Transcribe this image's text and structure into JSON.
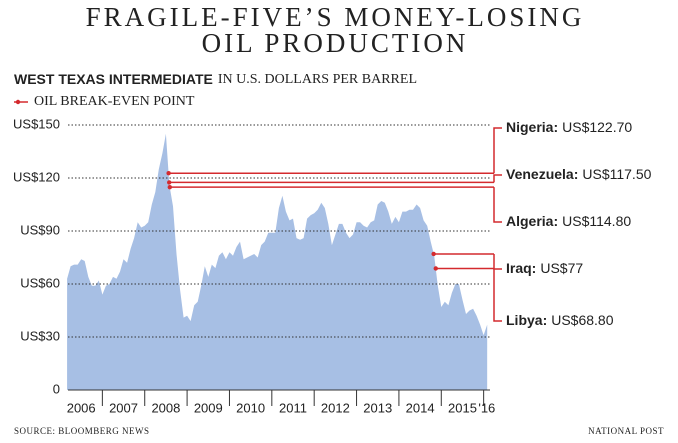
{
  "chart_data": {
    "type": "area",
    "title": [
      "FRAGILE-FIVE’S MONEY-LOSING",
      "OIL PRODUCTION"
    ],
    "subtitle": "IN U.S. DOLLARS PER BARREL",
    "legend_label": "OIL BREAK-EVEN POINT",
    "source": "SOURCE: BLOOMBERG NEWS",
    "credit": "NATIONAL POST",
    "break_even_color": "#d42a2e",
    "grid": true,
    "xlim": [
      2006,
      2016.15
    ],
    "ylim": [
      0,
      150
    ],
    "xticks": [
      2006,
      2007,
      2008,
      2009,
      2010,
      2011,
      2012,
      2013,
      2014,
      2015,
      {
        "value": 2016,
        "label": "'16"
      }
    ],
    "yticks": [
      0,
      {
        "value": 30,
        "label": "US$30"
      },
      {
        "value": 60,
        "label": "US$60"
      },
      {
        "value": 90,
        "label": "US$90"
      },
      {
        "value": 120,
        "label": "US$120"
      },
      {
        "value": 150,
        "label": "US$150"
      }
    ],
    "x": [
      2006.167,
      2006.25,
      2006.333,
      2006.417,
      2006.5,
      2006.583,
      2006.667,
      2006.75,
      2006.833,
      2006.917,
      2007,
      2007.083,
      2007.167,
      2007.25,
      2007.333,
      2007.417,
      2007.5,
      2007.583,
      2007.667,
      2007.75,
      2007.833,
      2007.917,
      2008,
      2008.083,
      2008.167,
      2008.25,
      2008.333,
      2008.417,
      2008.5,
      2008.583,
      2008.667,
      2008.75,
      2008.833,
      2008.917,
      2009,
      2009.083,
      2009.167,
      2009.25,
      2009.333,
      2009.417,
      2009.5,
      2009.583,
      2009.667,
      2009.75,
      2009.833,
      2009.917,
      2010,
      2010.083,
      2010.167,
      2010.25,
      2010.333,
      2010.417,
      2010.5,
      2010.583,
      2010.667,
      2010.75,
      2010.833,
      2010.917,
      2011,
      2011.083,
      2011.167,
      2011.25,
      2011.333,
      2011.417,
      2011.5,
      2011.583,
      2011.667,
      2011.75,
      2011.833,
      2011.917,
      2012,
      2012.083,
      2012.167,
      2012.25,
      2012.333,
      2012.417,
      2012.5,
      2012.583,
      2012.667,
      2012.75,
      2012.833,
      2012.917,
      2013,
      2013.083,
      2013.167,
      2013.25,
      2013.333,
      2013.417,
      2013.5,
      2013.583,
      2013.667,
      2013.75,
      2013.833,
      2013.917,
      2014,
      2014.083,
      2014.167,
      2014.25,
      2014.333,
      2014.417,
      2014.5,
      2014.583,
      2014.667,
      2014.75,
      2014.833,
      2014.917,
      2015,
      2015.083,
      2015.167,
      2015.25,
      2015.333,
      2015.417,
      2015.5,
      2015.583,
      2015.667,
      2015.75,
      2015.833,
      2015.917,
      2016,
      2016.083
    ],
    "series": [
      {
        "name": "WEST TEXAS INTERMEDIATE",
        "color": "#a7bfe4",
        "values": [
          63,
          70,
          71,
          71,
          74,
          73,
          64,
          59,
          59,
          62,
          54,
          59,
          60,
          64,
          63,
          67,
          74,
          72,
          80,
          86,
          95,
          92,
          93,
          95,
          105,
          112,
          125,
          134,
          145,
          116,
          104,
          77,
          57,
          41,
          42,
          39,
          48,
          50,
          59,
          70,
          64,
          71,
          69,
          76,
          78,
          74,
          78,
          76,
          81,
          84,
          74,
          75,
          76,
          77,
          75,
          82,
          84,
          89,
          89,
          89,
          103,
          110,
          101,
          96,
          97,
          86,
          85,
          86,
          97,
          99,
          100,
          102,
          106,
          103,
          94,
          82,
          88,
          94,
          94,
          89,
          86,
          88,
          95,
          95,
          93,
          92,
          95,
          96,
          105,
          107,
          106,
          101,
          94,
          98,
          95,
          101,
          101,
          102,
          102,
          105,
          103,
          96,
          93,
          84,
          76,
          59,
          47,
          50,
          48,
          55,
          60,
          60,
          51,
          43,
          45,
          46,
          42,
          37,
          31,
          37
        ]
      }
    ],
    "annotations": [
      {
        "country": "Nigeria:",
        "label": "US$122.70",
        "value": 122.7,
        "x": 2008.564
      },
      {
        "country": "Venezuela:",
        "label": "US$117.50",
        "value": 117.5,
        "x": 2008.578
      },
      {
        "country": "Algeria:",
        "label": "US$114.80",
        "value": 114.8,
        "x": 2008.592
      },
      {
        "country": "Iraq:",
        "label": "US$77",
        "value": 77,
        "x": 2014.82
      },
      {
        "country": "Libya:",
        "label": "US$68.80",
        "value": 68.8,
        "x": 2014.87
      }
    ]
  }
}
